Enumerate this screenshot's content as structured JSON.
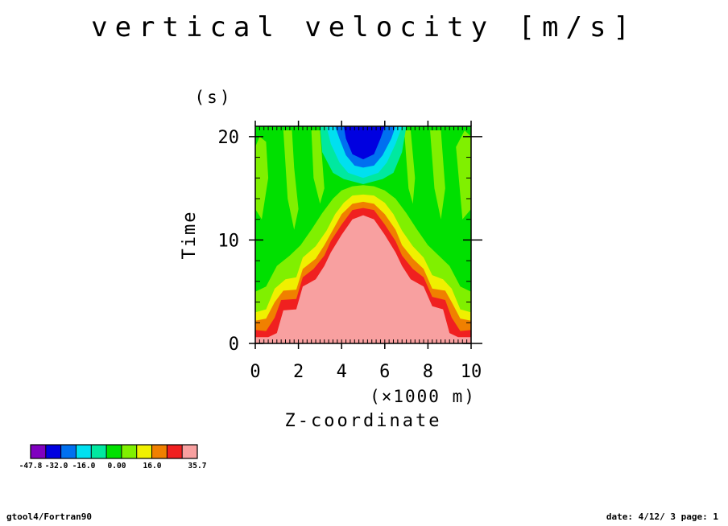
{
  "chart_data": {
    "type": "heatmap",
    "title": "vertical velocity [m/s]",
    "xlabel": "Z-coordinate",
    "xunit": "(×1000 m)",
    "ylabel": "Time",
    "yunit": "(s)",
    "xlim": [
      0,
      10
    ],
    "ylim": [
      0,
      21
    ],
    "xticks": [
      0,
      2,
      4,
      6,
      8,
      10
    ],
    "yticks": [
      0,
      10,
      20
    ],
    "colorbar": {
      "tick_labels": [
        "-47.8",
        "-32.0",
        "-16.0",
        "0.00",
        "16.0",
        "35.7"
      ],
      "colors": [
        "#8000c0",
        "#0000e0",
        "#0070f0",
        "#00e0f0",
        "#00e8a0",
        "#00e000",
        "#80f000",
        "#f0f000",
        "#f08000",
        "#f02020",
        "#f8a0a0"
      ]
    },
    "bands": [
      {
        "level": "35.7",
        "color": "#f8a0a0",
        "boundary": [
          [
            0,
            0.6
          ],
          [
            0.6,
            0.6
          ],
          [
            1.0,
            1.0
          ],
          [
            1.3,
            3.2
          ],
          [
            1.9,
            3.3
          ],
          [
            2.2,
            5.5
          ],
          [
            2.8,
            6.2
          ],
          [
            3.2,
            7.5
          ],
          [
            3.5,
            8.8
          ],
          [
            4.0,
            10.5
          ],
          [
            4.5,
            12.0
          ],
          [
            5.0,
            12.4
          ],
          [
            5.5,
            12.0
          ],
          [
            6.0,
            10.5
          ],
          [
            6.5,
            8.8
          ],
          [
            6.8,
            7.5
          ],
          [
            7.2,
            6.2
          ],
          [
            7.8,
            5.5
          ],
          [
            8.2,
            3.6
          ],
          [
            8.7,
            3.3
          ],
          [
            9.0,
            1.0
          ],
          [
            9.4,
            0.6
          ],
          [
            10,
            0.6
          ]
        ]
      },
      {
        "level": "16.0-35.7",
        "color": "#f02020",
        "boundary": [
          [
            0,
            1.3
          ],
          [
            0.5,
            1.2
          ],
          [
            0.9,
            2.5
          ],
          [
            1.2,
            4.2
          ],
          [
            1.9,
            4.3
          ],
          [
            2.2,
            6.4
          ],
          [
            2.7,
            7.2
          ],
          [
            3.2,
            8.5
          ],
          [
            3.5,
            9.9
          ],
          [
            4.0,
            11.5
          ],
          [
            4.5,
            12.9
          ],
          [
            5.0,
            13.1
          ],
          [
            5.5,
            12.9
          ],
          [
            6.0,
            11.5
          ],
          [
            6.5,
            9.9
          ],
          [
            6.8,
            8.5
          ],
          [
            7.3,
            7.2
          ],
          [
            7.8,
            6.4
          ],
          [
            8.2,
            4.5
          ],
          [
            8.8,
            4.2
          ],
          [
            9.1,
            2.5
          ],
          [
            9.5,
            1.2
          ],
          [
            10,
            1.3
          ]
        ]
      },
      {
        "level": "orange",
        "color": "#f08000",
        "boundary": [
          [
            0,
            2.2
          ],
          [
            0.5,
            2.4
          ],
          [
            0.9,
            4.0
          ],
          [
            1.3,
            5.1
          ],
          [
            1.9,
            5.2
          ],
          [
            2.2,
            7.2
          ],
          [
            2.8,
            8.2
          ],
          [
            3.2,
            9.5
          ],
          [
            3.6,
            11.0
          ],
          [
            4.0,
            12.5
          ],
          [
            4.5,
            13.5
          ],
          [
            5.0,
            13.7
          ],
          [
            5.5,
            13.5
          ],
          [
            6.0,
            12.5
          ],
          [
            6.5,
            11.0
          ],
          [
            6.8,
            9.5
          ],
          [
            7.3,
            8.2
          ],
          [
            7.8,
            7.2
          ],
          [
            8.2,
            5.3
          ],
          [
            8.8,
            5.1
          ],
          [
            9.1,
            4.0
          ],
          [
            9.5,
            2.4
          ],
          [
            10,
            2.2
          ]
        ]
      },
      {
        "level": "yellow",
        "color": "#f0f000",
        "boundary": [
          [
            0,
            3.0
          ],
          [
            0.5,
            3.3
          ],
          [
            0.9,
            5.3
          ],
          [
            1.4,
            6.2
          ],
          [
            1.9,
            6.4
          ],
          [
            2.2,
            8.3
          ],
          [
            2.8,
            9.4
          ],
          [
            3.3,
            10.9
          ],
          [
            3.7,
            12.5
          ],
          [
            4.1,
            13.6
          ],
          [
            4.5,
            14.3
          ],
          [
            5.0,
            14.4
          ],
          [
            5.5,
            14.3
          ],
          [
            6.0,
            13.6
          ],
          [
            6.4,
            12.5
          ],
          [
            6.8,
            10.9
          ],
          [
            7.3,
            9.4
          ],
          [
            7.8,
            8.3
          ],
          [
            8.2,
            6.6
          ],
          [
            8.7,
            6.2
          ],
          [
            9.1,
            5.3
          ],
          [
            9.5,
            3.3
          ],
          [
            10,
            3.0
          ]
        ]
      },
      {
        "level": "lime",
        "color": "#80f000",
        "boundary": [
          [
            0,
            5.0
          ],
          [
            0.5,
            5.5
          ],
          [
            1.0,
            7.5
          ],
          [
            1.6,
            8.5
          ],
          [
            2.1,
            9.5
          ],
          [
            2.6,
            11.0
          ],
          [
            3.1,
            12.6
          ],
          [
            3.6,
            14.0
          ],
          [
            4.0,
            14.8
          ],
          [
            4.5,
            15.2
          ],
          [
            5.0,
            15.3
          ],
          [
            5.5,
            15.2
          ],
          [
            6.0,
            14.8
          ],
          [
            6.5,
            14.0
          ],
          [
            7.0,
            12.6
          ],
          [
            7.5,
            11.0
          ],
          [
            8.0,
            9.5
          ],
          [
            8.5,
            8.5
          ],
          [
            9.0,
            7.5
          ],
          [
            9.5,
            5.5
          ],
          [
            10,
            5.0
          ]
        ]
      },
      {
        "level": "0.00",
        "color": "#00e000",
        "boundary": [
          [
            0,
            21
          ],
          [
            4.0,
            21
          ],
          [
            4.0,
            17.5
          ],
          [
            4.5,
            15.8
          ],
          [
            5.0,
            15.6
          ],
          [
            5.5,
            15.8
          ],
          [
            6.2,
            17.5
          ],
          [
            6.2,
            21
          ],
          [
            10,
            21
          ]
        ]
      }
    ],
    "patches": [
      {
        "color": "#80f000",
        "points": [
          [
            0,
            13
          ],
          [
            0.3,
            12
          ],
          [
            0.6,
            16
          ],
          [
            0.5,
            19.5
          ],
          [
            0.2,
            20
          ],
          [
            0,
            19
          ]
        ]
      },
      {
        "color": "#80f000",
        "points": [
          [
            1.3,
            20.6
          ],
          [
            1.5,
            14
          ],
          [
            1.8,
            11
          ],
          [
            2.0,
            13
          ],
          [
            1.8,
            17
          ],
          [
            1.7,
            20.6
          ]
        ]
      },
      {
        "color": "#80f000",
        "points": [
          [
            2.6,
            20.6
          ],
          [
            2.7,
            16
          ],
          [
            3.0,
            13.5
          ],
          [
            3.2,
            15
          ],
          [
            3.0,
            20.6
          ]
        ]
      },
      {
        "color": "#80f000",
        "points": [
          [
            6.9,
            20.6
          ],
          [
            7.1,
            15
          ],
          [
            7.3,
            13.5
          ],
          [
            7.4,
            16
          ],
          [
            7.2,
            20.6
          ]
        ]
      },
      {
        "color": "#80f000",
        "points": [
          [
            8.1,
            20.6
          ],
          [
            8.3,
            15
          ],
          [
            8.6,
            12
          ],
          [
            8.8,
            15
          ],
          [
            8.6,
            20.6
          ]
        ]
      },
      {
        "color": "#80f000",
        "points": [
          [
            9.3,
            19
          ],
          [
            9.6,
            12
          ],
          [
            10,
            13
          ],
          [
            10,
            20
          ],
          [
            9.7,
            20.6
          ]
        ]
      },
      {
        "color": "#00e8a0",
        "points": [
          [
            3.0,
            21
          ],
          [
            3.1,
            18.5
          ],
          [
            3.6,
            16.5
          ],
          [
            4.1,
            15.9
          ],
          [
            5.0,
            15.4
          ],
          [
            5.9,
            15.9
          ],
          [
            6.4,
            16.5
          ],
          [
            6.8,
            18.5
          ],
          [
            7.0,
            21
          ]
        ]
      },
      {
        "color": "#00e0f0",
        "points": [
          [
            3.3,
            21
          ],
          [
            3.5,
            19.3
          ],
          [
            3.9,
            17.5
          ],
          [
            4.3,
            16.5
          ],
          [
            5.0,
            16.0
          ],
          [
            5.7,
            16.5
          ],
          [
            6.1,
            17.5
          ],
          [
            6.5,
            19.3
          ],
          [
            6.8,
            21
          ]
        ]
      },
      {
        "color": "#0070f0",
        "points": [
          [
            3.7,
            21
          ],
          [
            3.9,
            19.8
          ],
          [
            4.2,
            18.2
          ],
          [
            4.6,
            17.2
          ],
          [
            5.0,
            17.0
          ],
          [
            5.5,
            17.2
          ],
          [
            5.9,
            18.2
          ],
          [
            6.3,
            19.8
          ],
          [
            6.5,
            21
          ]
        ]
      },
      {
        "color": "#0000e0",
        "points": [
          [
            4.1,
            21
          ],
          [
            4.2,
            19.8
          ],
          [
            4.5,
            18.3
          ],
          [
            5.0,
            17.8
          ],
          [
            5.5,
            18.3
          ],
          [
            5.8,
            19.8
          ],
          [
            6.0,
            21
          ]
        ]
      }
    ]
  },
  "footer": {
    "left": "gtool4/Fortran90",
    "right": "date: 4/12/ 3 page: 1"
  }
}
